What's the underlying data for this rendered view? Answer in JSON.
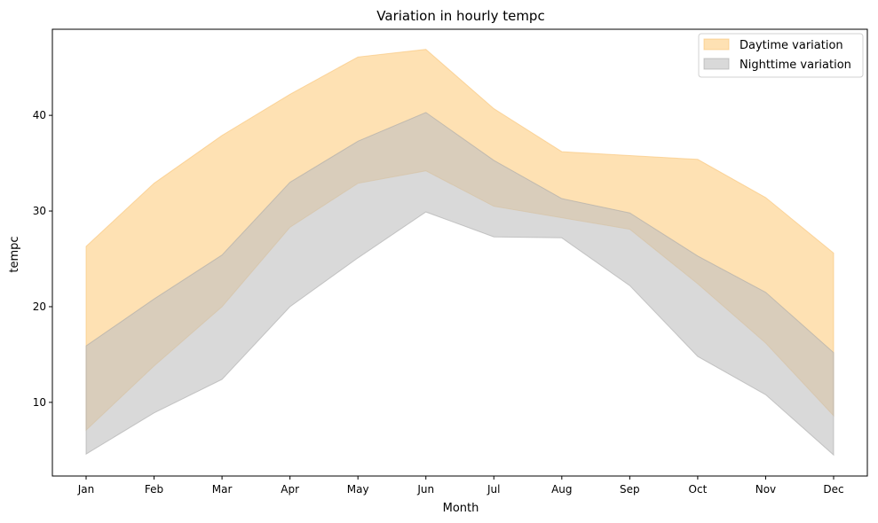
{
  "chart_data": {
    "type": "area",
    "title": "Variation in hourly tempc",
    "xlabel": "Month",
    "ylabel": "tempc",
    "categories": [
      "Jan",
      "Feb",
      "Mar",
      "Apr",
      "May",
      "Jun",
      "Jul",
      "Aug",
      "Sep",
      "Oct",
      "Nov",
      "Dec"
    ],
    "ylim": [
      2.3,
      49.0
    ],
    "yticks": [
      10,
      20,
      30,
      40
    ],
    "legend_position": "top-right",
    "grid": false,
    "series": [
      {
        "name": "Daytime variation",
        "color": "#fdd79a",
        "edge_color": "#f8c374",
        "opacity": 0.75,
        "lower": [
          7.1,
          13.8,
          20.0,
          28.3,
          32.9,
          34.2,
          30.5,
          29.3,
          28.1,
          22.4,
          16.2,
          8.6
        ],
        "upper": [
          26.3,
          32.9,
          37.9,
          42.2,
          46.1,
          46.9,
          40.7,
          36.2,
          35.8,
          35.4,
          31.4,
          25.6
        ]
      },
      {
        "name": "Nighttime variation",
        "color": "#bfbfbf",
        "edge_color": "#a8a8a8",
        "opacity": 0.6,
        "lower": [
          4.6,
          8.9,
          12.4,
          20.0,
          25.1,
          29.9,
          27.3,
          27.2,
          22.2,
          14.8,
          10.8,
          4.5
        ],
        "upper": [
          15.9,
          20.8,
          25.4,
          33.0,
          37.3,
          40.3,
          35.3,
          31.3,
          29.8,
          25.3,
          21.5,
          15.2
        ]
      }
    ]
  }
}
